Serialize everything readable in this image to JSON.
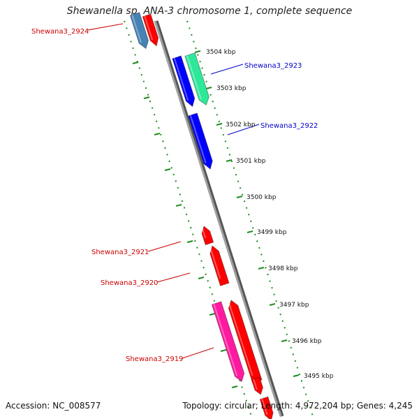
{
  "title": "Shewanella sp. ANA-3 chromosome 1, complete sequence",
  "footer": {
    "accession": "Accession: NC_008577",
    "summary": "Topology: circular; Length: 4,972,204 bp; Genes: 4,245"
  },
  "colors": {
    "forward": "#ff0000",
    "reverse": "#0000ff",
    "backbone": "#808080",
    "ruler": "#1e8c1e",
    "label_forward": "#cc0000",
    "label_reverse": "#0000cc",
    "gene_teal": "#2ee89a",
    "gene_steel": "#4682b4",
    "gene_pink": "#ff1aa0"
  },
  "ruler": {
    "tick_labels": [
      "3504 kbp",
      "3503 kbp",
      "3502 kbp",
      "3501 kbp",
      "3500 kbp",
      "3499 kbp",
      "3498 kbp",
      "3497 kbp",
      "3496 kbp",
      "3495 kbp"
    ]
  },
  "gene_labels": [
    {
      "name": "Shewana3_2924",
      "strand": "forward"
    },
    {
      "name": "Shewana3_2923",
      "strand": "reverse"
    },
    {
      "name": "Shewana3_2922",
      "strand": "reverse"
    },
    {
      "name": "Shewana3_2921",
      "strand": "forward"
    },
    {
      "name": "Shewana3_2920",
      "strand": "forward"
    },
    {
      "name": "Shewana3_2919",
      "strand": "forward"
    }
  ]
}
